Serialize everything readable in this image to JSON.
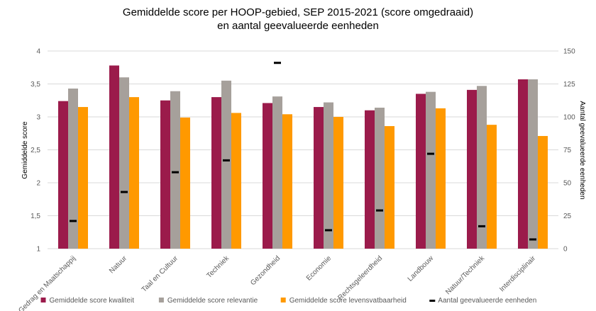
{
  "chart_data": {
    "type": "bar",
    "title": "Gemiddelde score per HOOP-gebied, SEP 2015-2021 (score omgedraaid)",
    "subtitle": "en aantal geevalueerde eenheden",
    "categories": [
      "Gedrag en Maatschappij",
      "Natuur",
      "Taal en Cultuur",
      "Techniek",
      "Gezondheid",
      "Economie",
      "Rechtsgeleerdheid",
      "Landbouw",
      "Natuur/Techniek",
      "Interdisciplinair"
    ],
    "series": [
      {
        "name": "Gemiddelde score kwaliteit",
        "color": "#9b1b4b",
        "axis": "left",
        "values": [
          3.24,
          3.78,
          3.25,
          3.3,
          3.21,
          3.15,
          3.1,
          3.35,
          3.41,
          3.57
        ]
      },
      {
        "name": "Gemiddelde score relevantie",
        "color": "#a6a09b",
        "axis": "left",
        "values": [
          3.43,
          3.6,
          3.39,
          3.55,
          3.31,
          3.22,
          3.14,
          3.38,
          3.47,
          3.57
        ]
      },
      {
        "name": "Gemiddelde score levensvatbaarheid",
        "color": "#ff9900",
        "axis": "left",
        "values": [
          3.15,
          3.3,
          2.99,
          3.06,
          3.04,
          3.0,
          2.86,
          3.13,
          2.88,
          2.71
        ]
      },
      {
        "name": "Aantal geevalueerde eenheden",
        "color": "#000000",
        "axis": "right",
        "marker": "dash",
        "values": [
          21,
          43,
          58,
          67,
          141,
          14,
          29,
          72,
          17,
          7
        ]
      }
    ],
    "ylabel": "Gemiddelde score",
    "y2label": "Aantal geevalueerde eenheden",
    "ylim": [
      1,
      4
    ],
    "y2lim": [
      0,
      150
    ],
    "yticks": [
      "1",
      "1,5",
      "2",
      "2,5",
      "3",
      "3,5",
      "4"
    ],
    "y2ticks": [
      "0",
      "25",
      "50",
      "75",
      "100",
      "125",
      "150"
    ],
    "grid": true,
    "legend": "bottom"
  }
}
